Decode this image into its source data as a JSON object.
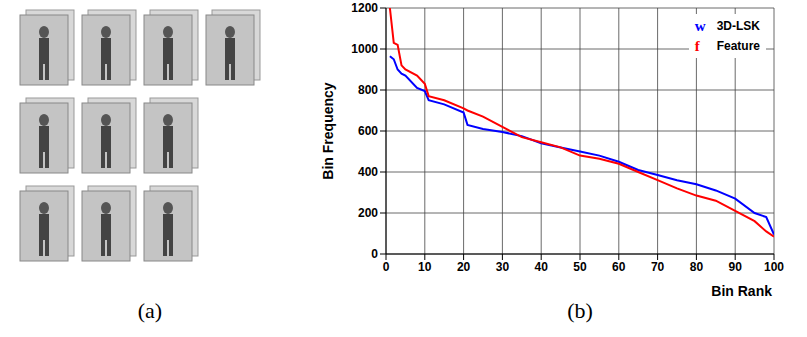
{
  "panel_labels": [
    "(a)",
    "(b)"
  ],
  "chart_data": {
    "type": "line",
    "x_label": "Bin Rank",
    "y_label": "Bin Frequency",
    "x": [
      1,
      2,
      3,
      4,
      5,
      8,
      10,
      11,
      15,
      20,
      21,
      25,
      30,
      35,
      40,
      45,
      50,
      55,
      60,
      65,
      70,
      75,
      80,
      85,
      90,
      95,
      98,
      100
    ],
    "series": [
      {
        "name": "3D-LSK",
        "color": "#0000ff",
        "values": [
          965,
          950,
          900,
          880,
          870,
          810,
          795,
          750,
          730,
          690,
          630,
          610,
          595,
          575,
          540,
          520,
          500,
          480,
          450,
          410,
          385,
          360,
          340,
          310,
          270,
          200,
          180,
          95
        ]
      },
      {
        "name": "Feature",
        "color": "#ff0000",
        "values": [
          1200,
          1030,
          1020,
          920,
          900,
          870,
          830,
          770,
          750,
          710,
          700,
          670,
          620,
          570,
          545,
          520,
          480,
          465,
          440,
          400,
          360,
          320,
          285,
          260,
          210,
          160,
          110,
          85
        ]
      }
    ],
    "annotations": [
      "w",
      "f"
    ],
    "xlim": [
      0,
      100
    ],
    "xticks": [
      0,
      10,
      20,
      30,
      40,
      50,
      60,
      70,
      80,
      90,
      100
    ],
    "ylim": [
      0,
      1200
    ],
    "yticks": [
      0,
      200,
      400,
      600,
      800,
      1000,
      1200
    ],
    "grid": true,
    "legend": "upper right"
  }
}
